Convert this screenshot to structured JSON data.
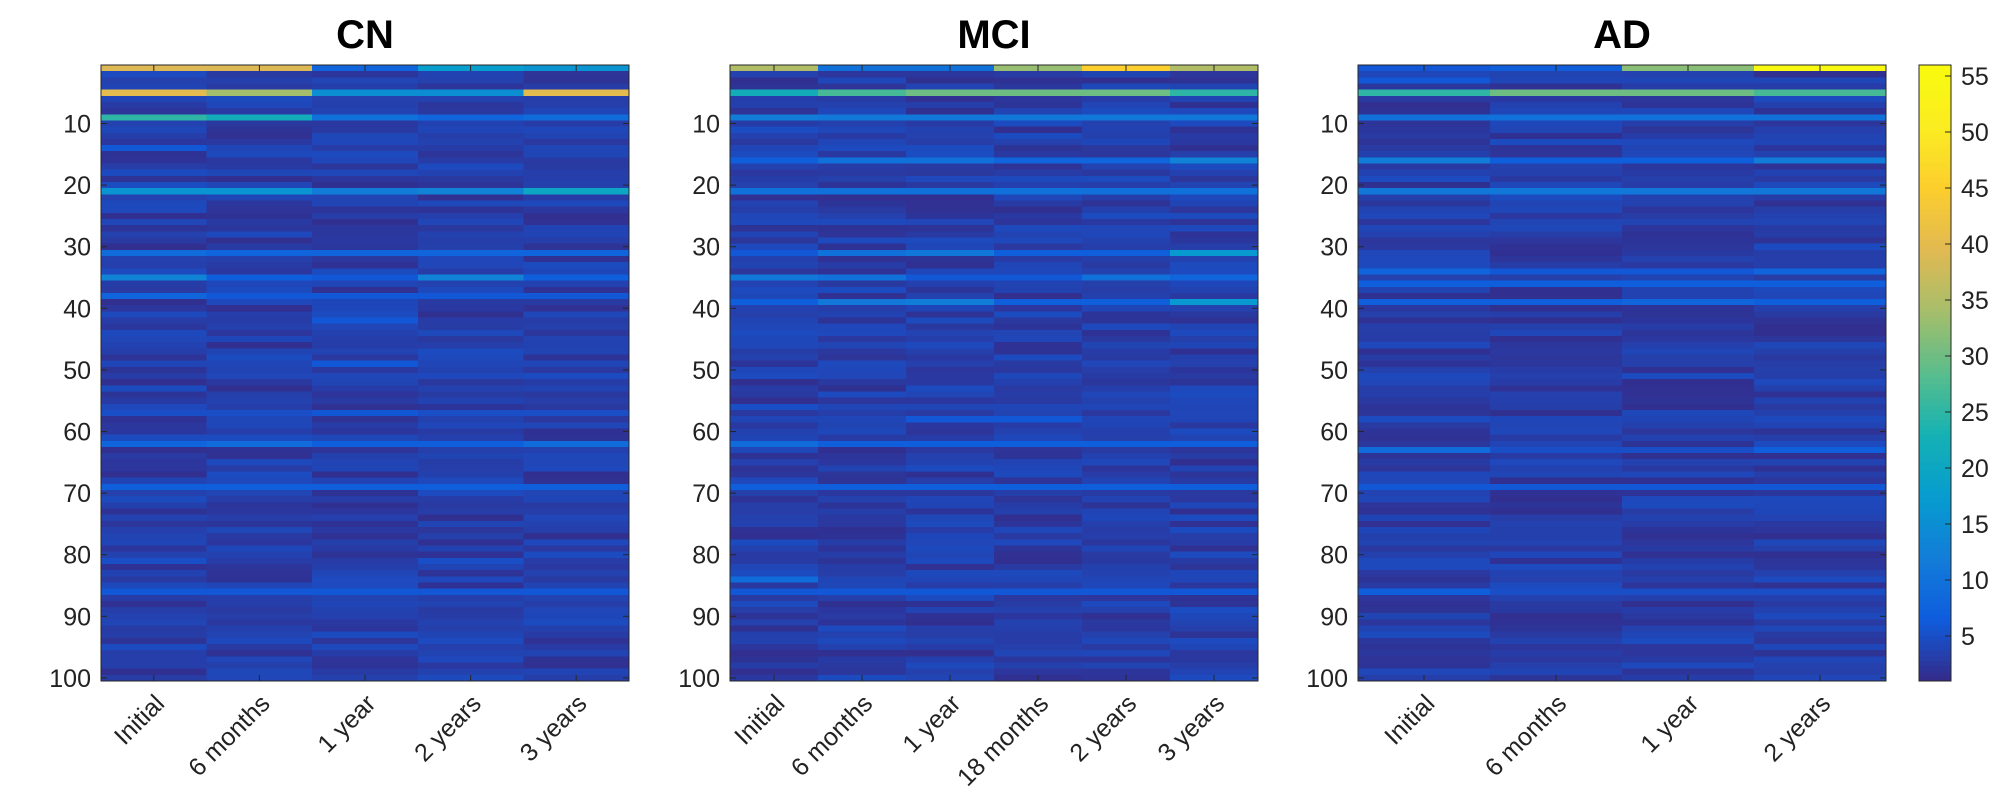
{
  "chart_data": [
    {
      "type": "heatmap",
      "title": "CN",
      "x_categories": [
        "Initial",
        "6 months",
        "1 year",
        "2 years",
        "3 years"
      ],
      "y_ticks": [
        10,
        20,
        30,
        40,
        50,
        60,
        70,
        80,
        90,
        100
      ],
      "ylim": [
        1,
        100
      ],
      "y_reversed": true,
      "highlights": [
        {
          "row": 1,
          "values": [
            39,
            39,
            8,
            18,
            16
          ]
        },
        {
          "row": 5,
          "values": [
            40,
            34,
            15,
            15,
            40
          ]
        },
        {
          "row": 9,
          "values": [
            25,
            22,
            10,
            8,
            9
          ]
        },
        {
          "row": 14,
          "values": [
            6,
            4,
            3,
            3,
            4
          ]
        },
        {
          "row": 21,
          "values": [
            16,
            16,
            12,
            13,
            20
          ]
        },
        {
          "row": 31,
          "values": [
            9,
            8,
            8,
            8,
            8
          ]
        },
        {
          "row": 35,
          "values": [
            13,
            7,
            6,
            13,
            7
          ]
        },
        {
          "row": 38,
          "values": [
            8,
            6,
            6,
            6,
            6
          ]
        },
        {
          "row": 42,
          "values": [
            3,
            3,
            6,
            3,
            3
          ]
        },
        {
          "row": 49,
          "values": [
            4,
            4,
            6,
            4,
            4
          ]
        },
        {
          "row": 57,
          "values": [
            5,
            5,
            6,
            5,
            5
          ]
        },
        {
          "row": 62,
          "values": [
            8,
            9,
            7,
            7,
            9
          ]
        },
        {
          "row": 69,
          "values": [
            7,
            7,
            7,
            7,
            7
          ]
        },
        {
          "row": 81,
          "values": [
            5,
            3,
            3,
            5,
            3
          ]
        },
        {
          "row": 86,
          "values": [
            6,
            6,
            6,
            6,
            6
          ]
        }
      ]
    },
    {
      "type": "heatmap",
      "title": "MCI",
      "x_categories": [
        "Initial",
        "6 months",
        "1 year",
        "18 months",
        "2 years",
        "3 years"
      ],
      "y_ticks": [
        10,
        20,
        30,
        40,
        50,
        60,
        70,
        80,
        90,
        100
      ],
      "ylim": [
        1,
        100
      ],
      "y_reversed": true,
      "highlights": [
        {
          "row": 1,
          "values": [
            35,
            10,
            10,
            33,
            45,
            35
          ]
        },
        {
          "row": 5,
          "values": [
            22,
            27,
            30,
            30,
            30,
            25
          ]
        },
        {
          "row": 9,
          "values": [
            12,
            11,
            11,
            11,
            11,
            11
          ]
        },
        {
          "row": 16,
          "values": [
            7,
            10,
            10,
            8,
            8,
            13
          ]
        },
        {
          "row": 21,
          "values": [
            10,
            10,
            10,
            10,
            10,
            10
          ]
        },
        {
          "row": 31,
          "values": [
            6,
            10,
            11,
            7,
            7,
            17
          ]
        },
        {
          "row": 35,
          "values": [
            11,
            10,
            6,
            6,
            10,
            8
          ]
        },
        {
          "row": 39,
          "values": [
            7,
            11,
            12,
            7,
            7,
            17
          ]
        },
        {
          "row": 56,
          "values": [
            5,
            4,
            4,
            4,
            4,
            4
          ]
        },
        {
          "row": 58,
          "values": [
            4,
            4,
            6,
            6,
            4,
            4
          ]
        },
        {
          "row": 62,
          "values": [
            9,
            7,
            7,
            7,
            7,
            7
          ]
        },
        {
          "row": 69,
          "values": [
            7,
            7,
            7,
            7,
            7,
            7
          ]
        },
        {
          "row": 84,
          "values": [
            9,
            4,
            4,
            4,
            4,
            4
          ]
        },
        {
          "row": 86,
          "values": [
            6,
            6,
            6,
            6,
            6,
            6
          ]
        }
      ]
    },
    {
      "type": "heatmap",
      "title": "AD",
      "x_categories": [
        "Initial",
        "6 months",
        "1 year",
        "2 years"
      ],
      "y_ticks": [
        10,
        20,
        30,
        40,
        50,
        60,
        70,
        80,
        90,
        100
      ],
      "ylim": [
        1,
        100
      ],
      "y_reversed": true,
      "highlights": [
        {
          "row": 1,
          "values": [
            6,
            7,
            32,
            55
          ]
        },
        {
          "row": 3,
          "values": [
            6,
            4,
            4,
            4
          ]
        },
        {
          "row": 5,
          "values": [
            25,
            30,
            30,
            27
          ]
        },
        {
          "row": 9,
          "values": [
            10,
            10,
            10,
            10
          ]
        },
        {
          "row": 16,
          "values": [
            12,
            7,
            7,
            12
          ]
        },
        {
          "row": 21,
          "values": [
            11,
            11,
            11,
            11
          ]
        },
        {
          "row": 34,
          "values": [
            8,
            6,
            6,
            8
          ]
        },
        {
          "row": 36,
          "values": [
            7,
            7,
            7,
            7
          ]
        },
        {
          "row": 39,
          "values": [
            7,
            7,
            8,
            7
          ]
        },
        {
          "row": 63,
          "values": [
            9,
            5,
            5,
            7
          ]
        },
        {
          "row": 69,
          "values": [
            6,
            6,
            6,
            6
          ]
        },
        {
          "row": 86,
          "values": [
            7,
            5,
            5,
            5
          ]
        }
      ]
    }
  ],
  "colorbar": {
    "range": [
      1,
      56
    ],
    "ticks": [
      5,
      10,
      15,
      20,
      25,
      30,
      35,
      40,
      45,
      50,
      55
    ],
    "colormap": "parula"
  }
}
